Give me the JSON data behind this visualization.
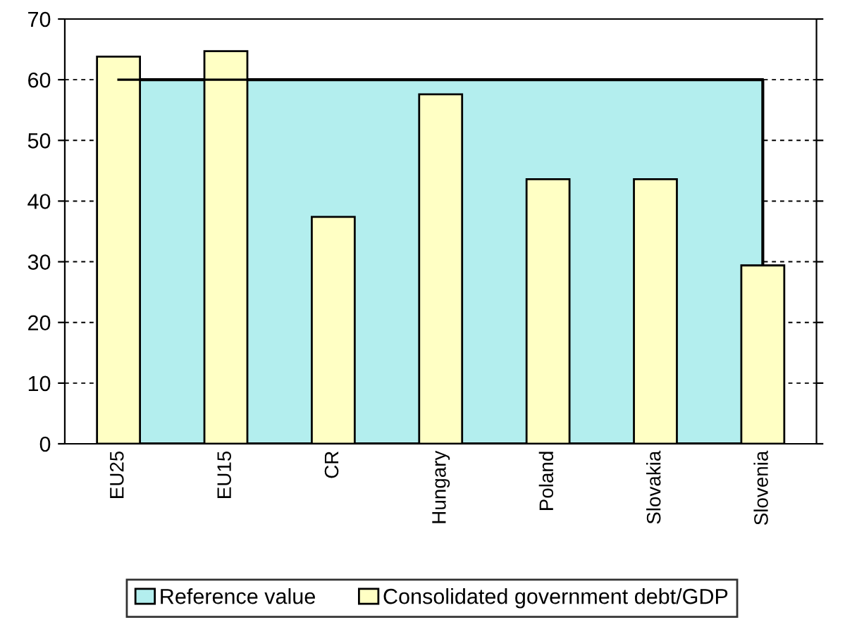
{
  "chart_data": {
    "type": "bar",
    "categories": [
      "EU25",
      "EU15",
      "CR",
      "Hungary",
      "Poland",
      "Slovakia",
      "Slovenia"
    ],
    "series": [
      {
        "name": "Reference value",
        "type": "area",
        "color": "#b3eeee",
        "values": [
          60,
          60,
          60,
          60,
          60,
          60,
          60
        ]
      },
      {
        "name": "Consolidated government debt/GDP",
        "color": "#ffffc4",
        "values": [
          63.8,
          64.7,
          37.4,
          57.6,
          43.6,
          43.6,
          29.4
        ]
      }
    ],
    "ylim": [
      0,
      70
    ],
    "yticks": [
      0,
      10,
      20,
      30,
      40,
      50,
      60,
      70
    ],
    "grid": "y",
    "legend": "bottom"
  }
}
